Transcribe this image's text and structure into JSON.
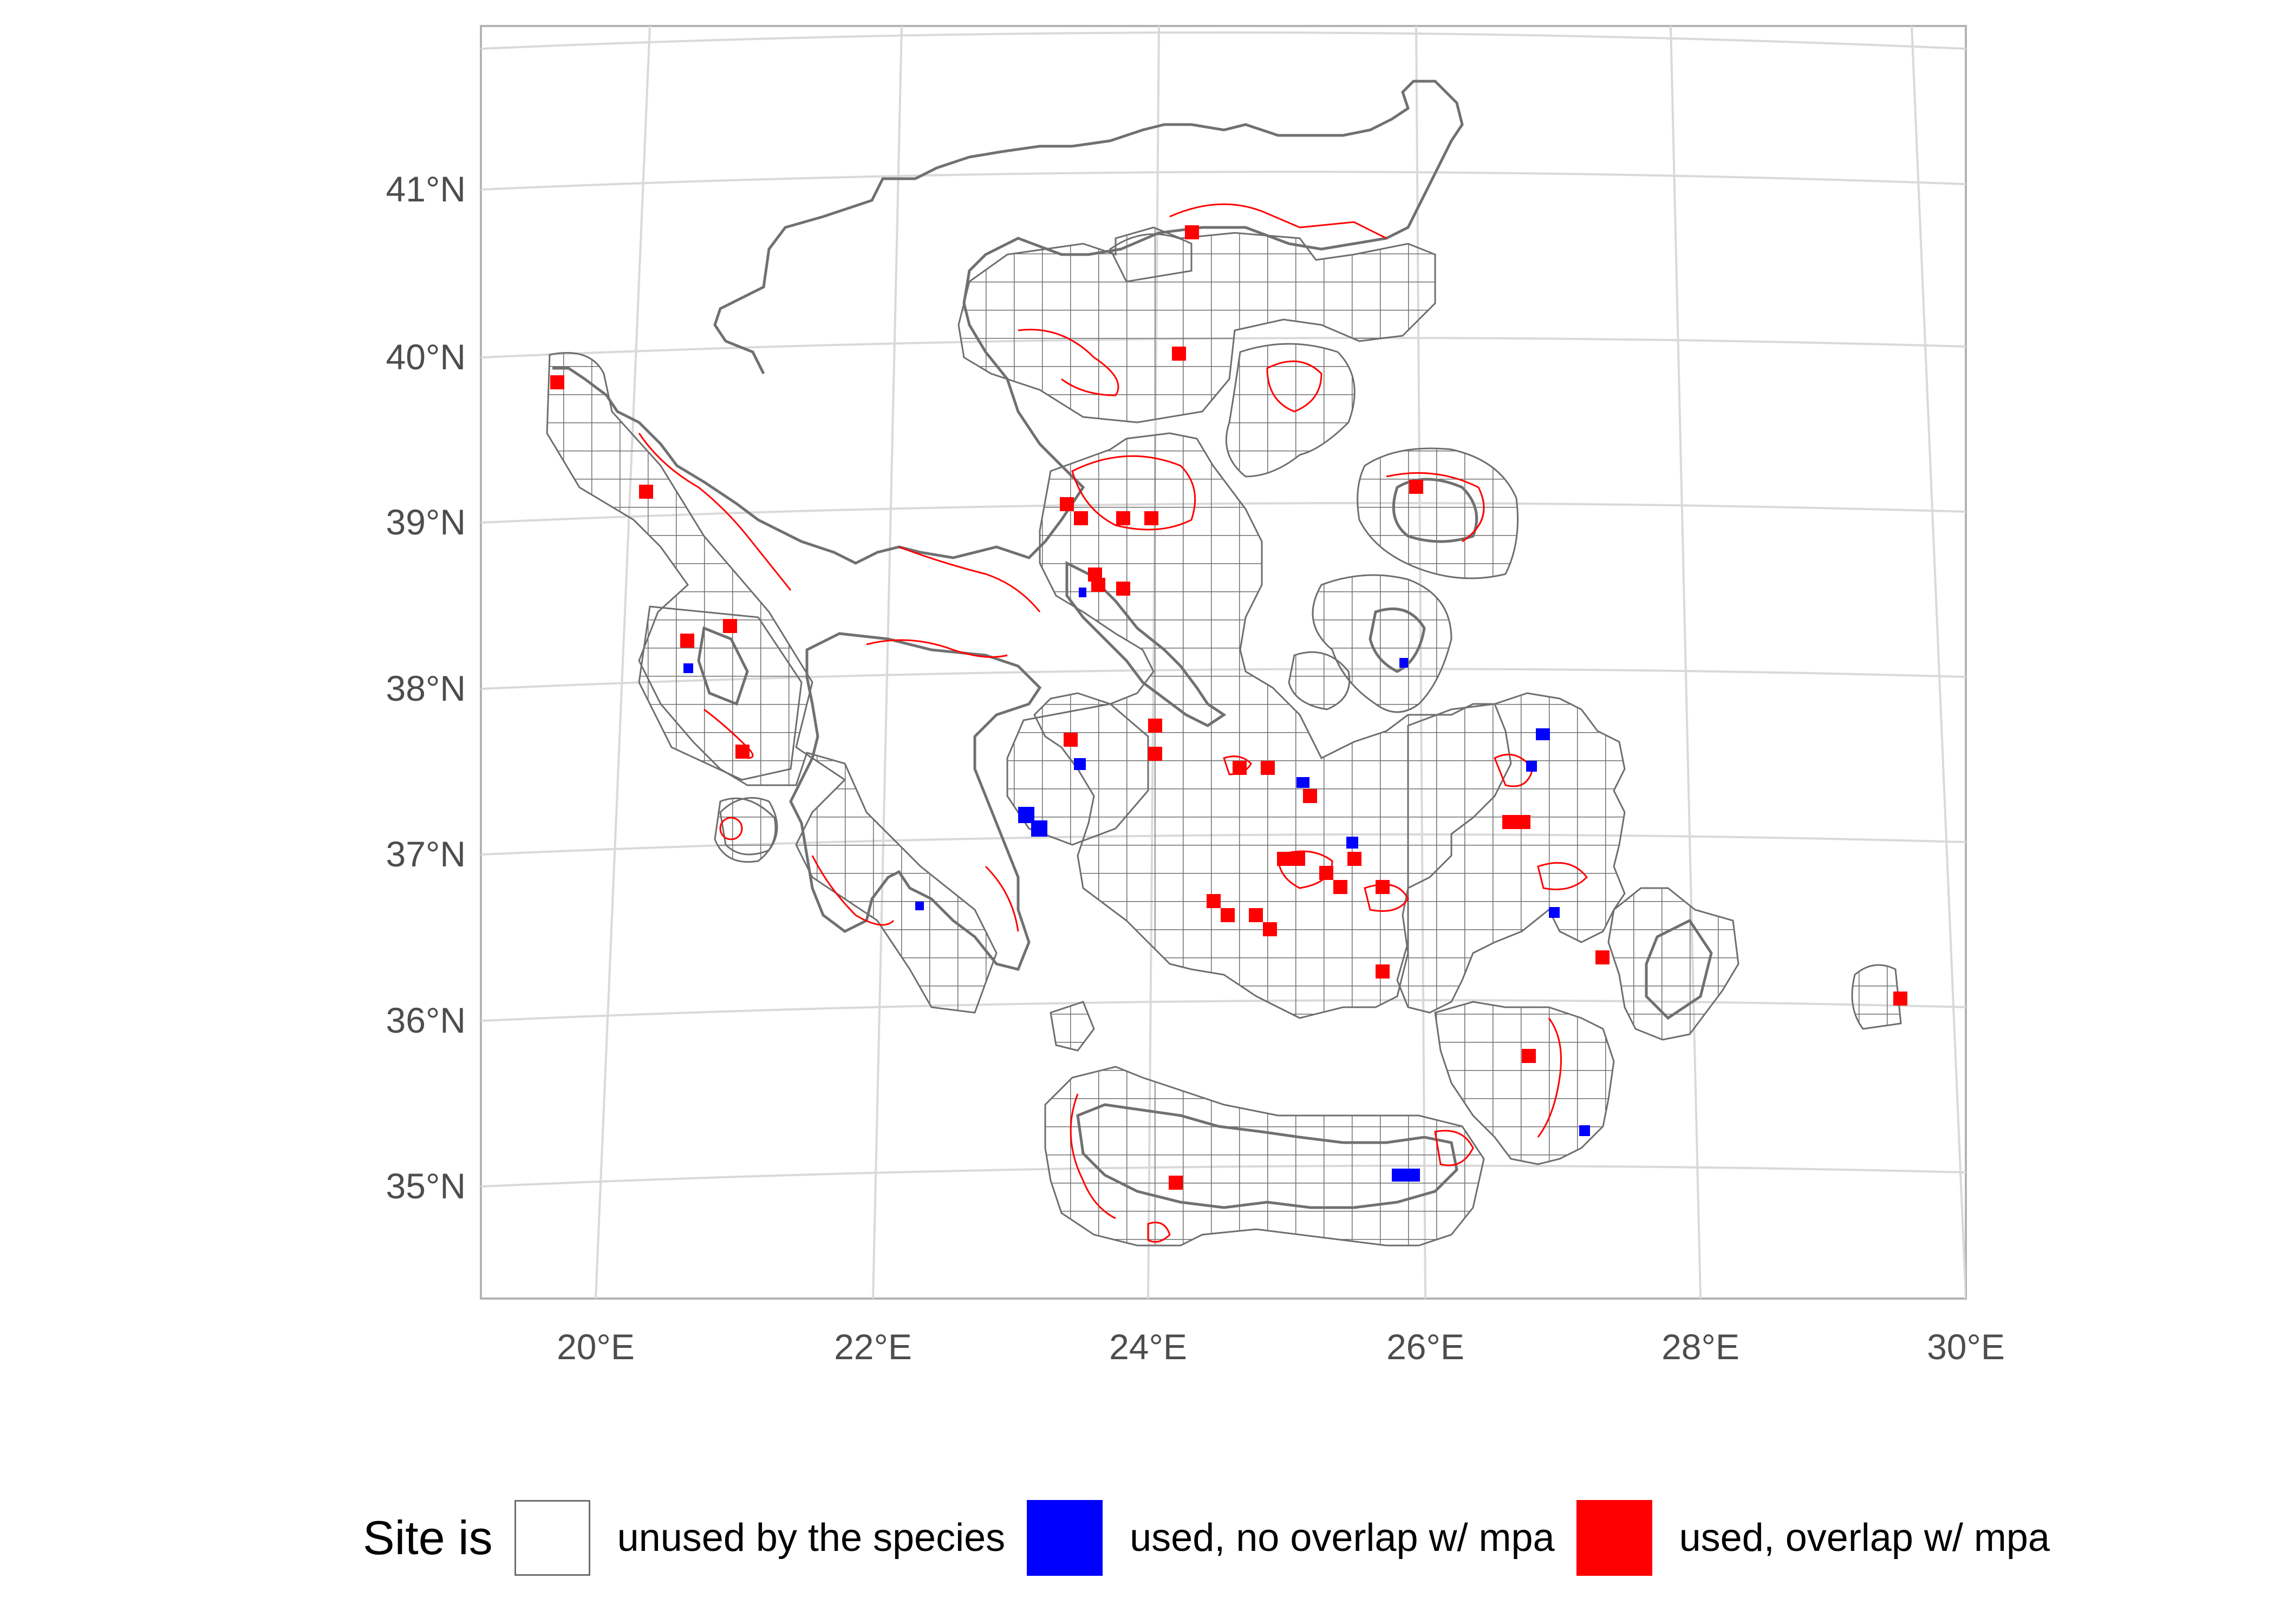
{
  "map": {
    "graticule": {
      "lat_labels": [
        "41°N",
        "40°N",
        "39°N",
        "38°N",
        "37°N",
        "36°N",
        "35°N"
      ],
      "lon_labels": [
        "20°E",
        "22°E",
        "24°E",
        "26°E",
        "28°E",
        "30°E"
      ]
    },
    "colors": {
      "background": "#ffffff",
      "graticule": "#d9d9d9",
      "frame": "#b3b3b3",
      "coastline": "#707070",
      "mpa_outline": "#ff0000",
      "used_no_overlap": "#0000ff",
      "used_overlap": "#ff0000",
      "unused": "#ffffff"
    }
  },
  "legend": {
    "title": "Site is",
    "items": [
      {
        "label": "unused by the species",
        "color": "#ffffff"
      },
      {
        "label": "used, no overlap w/ mpa",
        "color": "#0000ff"
      },
      {
        "label": "used, overlap w/ mpa",
        "color": "#ff0000"
      }
    ]
  }
}
